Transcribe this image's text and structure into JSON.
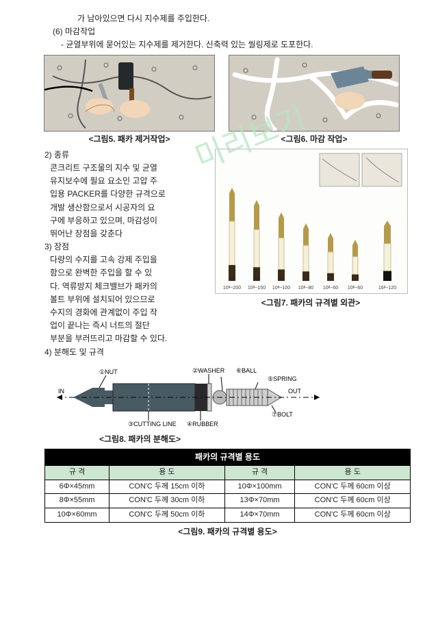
{
  "text": {
    "l1": "가 남아있으면 다시 지수제를 주입한다.",
    "l2": "(6) 마감작업",
    "l3": "- 균열부위에 묻어있는 지수제를 제거한다. 신축력 있는 씰링제로 도포한다.",
    "cap5": "<그림5. 패카 제거작업>",
    "cap6": "<그림6. 마감 작업>",
    "h2": "2) 종류",
    "p2a": "콘크리트 구조물의 지수 및 균열",
    "p2b": "유지보수에 필요 요소인 고압 주",
    "p2c": "입용 PACKER를 다양한 규격으로",
    "p2d": "개발 생산함으로서 시공자의 요",
    "p2e": "구에 부응하고 있으며, 마감성이",
    "p2f": "뛰어난 장점을 갖춘다",
    "h3": "3) 장점",
    "p3a": "다량의 수지를 고속 강제 주입을",
    "p3b": "함으로 완벽한 주입을 할 수 있",
    "p3c": "다. 역류방지 체크밸브가 패카의",
    "p3d": "볼트 부위에 설치되어 있으므로",
    "p3e": "수지의 경화에 관계없이 주입 작",
    "p3f": "업이 끝나는 즉시 너트의 절단",
    "p3g": "부분을 부러뜨리고 마감할 수 있다.",
    "cap7": "<그림7. 패카의 규격별 외관>",
    "h4": "4) 분해도 및 규격",
    "cap8": "<그림8. 패카의 분해도>",
    "cap9": "<그림9. 패카의 규격별 용도>",
    "watermark": "미리보기"
  },
  "dia": {
    "nut": "①NUT",
    "cut": "③CUTTING LINE",
    "rub": "④RUBBER",
    "wash": "②WASHER",
    "ball": "⑥BALL",
    "spring": "⑤SPRING",
    "bolt": "⑦BOLT",
    "in": "IN",
    "out": "OUT"
  },
  "packers": {
    "labels": [
      "10ᶲ~200",
      "10ᶲ~150",
      "10ᶲ~100",
      "10ᶲ~80",
      "10ᶲ~60",
      "10ᶲ~60",
      "16ᶲ~120"
    ]
  },
  "table": {
    "title": "패카의 규격별 용도",
    "headers": [
      "규 격",
      "용 도",
      "규 격",
      "용 도"
    ],
    "rows": [
      [
        "6Φ×45mm",
        "CON'C 두께 15cm 이하",
        "10Φ×100mm",
        "CON'C 두께 60cm 이상"
      ],
      [
        "8Φ×55mm",
        "CON'C 두께 30cm 이하",
        "13Φ×70mm",
        "CON'C 두께 60cm 이상"
      ],
      [
        "10Φ×60mm",
        "CON'C 두께 50cm 이하",
        "14Φ×70mm",
        "CON'C 두께 60cm 이상"
      ]
    ]
  },
  "colors": {
    "bgConcrete": "#d2cdc3",
    "packerBody": "#485a62",
    "brass": "#b59a4a"
  }
}
